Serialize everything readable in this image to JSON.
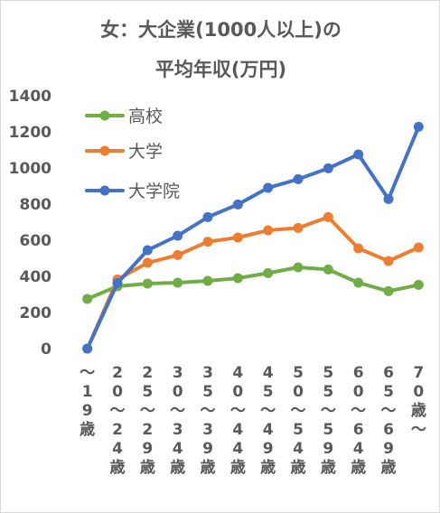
{
  "chart_data": {
    "type": "line",
    "title_line1": "女：大企業(1000人以上)の",
    "title_line2": "平均年収(万円)",
    "categories": [
      "～19歳",
      "20～24歳",
      "25～29歳",
      "30～34歳",
      "35～39歳",
      "40～44歳",
      "45～49歳",
      "50～54歳",
      "55～59歳",
      "60～64歳",
      "65～69歳",
      "70歳～"
    ],
    "ylim": [
      0,
      1400
    ],
    "yticks": [
      "0",
      "200",
      "400",
      "600",
      "800",
      "1000",
      "1200",
      "1400"
    ],
    "grid": false,
    "legend_position": "top-left",
    "series": [
      {
        "name": "高校",
        "color": "#70ad47",
        "values": [
          275,
          345,
          360,
          365,
          375,
          390,
          418,
          450,
          438,
          365,
          318,
          353
        ]
      },
      {
        "name": "大学",
        "color": "#ed7d31",
        "values": [
          0,
          383,
          475,
          518,
          592,
          615,
          655,
          668,
          728,
          555,
          485,
          560
        ]
      },
      {
        "name": "大学院",
        "color": "#4472c4",
        "values": [
          0,
          363,
          545,
          625,
          728,
          798,
          890,
          938,
          998,
          1075,
          828,
          1228
        ]
      }
    ]
  }
}
